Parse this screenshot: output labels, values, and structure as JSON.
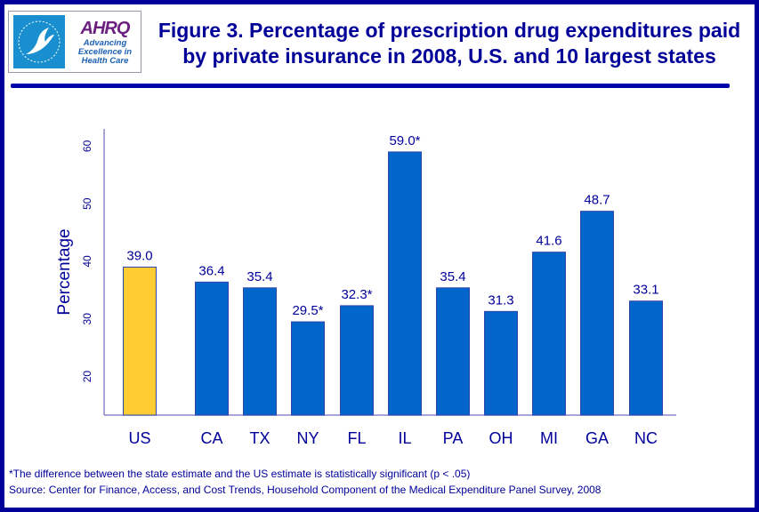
{
  "header": {
    "logo_hhs": "HHS eagle seal",
    "logo_ahrq": "AHRQ",
    "logo_tagline": [
      "Advancing",
      "Excellence in",
      "Health Care"
    ],
    "title_line1": "Figure 3.  Percentage of prescription drug expenditures paid",
    "title_line2": "by private insurance in 2008, U.S. and 10 largest states"
  },
  "colors": {
    "frame": "#000099",
    "text": "#000099",
    "us_bar": "#ffcc33",
    "state_bar": "#0066cc",
    "axis": "#8888cc"
  },
  "chart_data": {
    "type": "bar",
    "title": "Percentage of prescription drug expenditures paid by private insurance in 2008, U.S. and 10 largest states",
    "xlabel": "",
    "ylabel": "Percentage",
    "ylim": [
      13.3,
      63
    ],
    "yticks": [
      20,
      30,
      40,
      50,
      60
    ],
    "grid": false,
    "legend": "none",
    "categories": [
      "US",
      "CA",
      "TX",
      "NY",
      "FL",
      "IL",
      "PA",
      "OH",
      "MI",
      "GA",
      "NC"
    ],
    "values": [
      39.0,
      36.4,
      35.4,
      29.5,
      32.3,
      59.0,
      35.4,
      31.3,
      41.6,
      48.7,
      33.1
    ],
    "labels": [
      "39.0",
      "36.4",
      "35.4",
      "29.5*",
      "32.3*",
      "59.0*",
      "35.4",
      "31.3",
      "41.6",
      "48.7",
      "33.1"
    ],
    "highlight": [
      "US"
    ]
  },
  "footnotes": {
    "significance": "*The difference between the state estimate and the US estimate is statistically significant (p < .05)",
    "source": "Source: Center for Finance, Access, and Cost Trends, Household Component of the Medical Expenditure Panel Survey, 2008"
  }
}
